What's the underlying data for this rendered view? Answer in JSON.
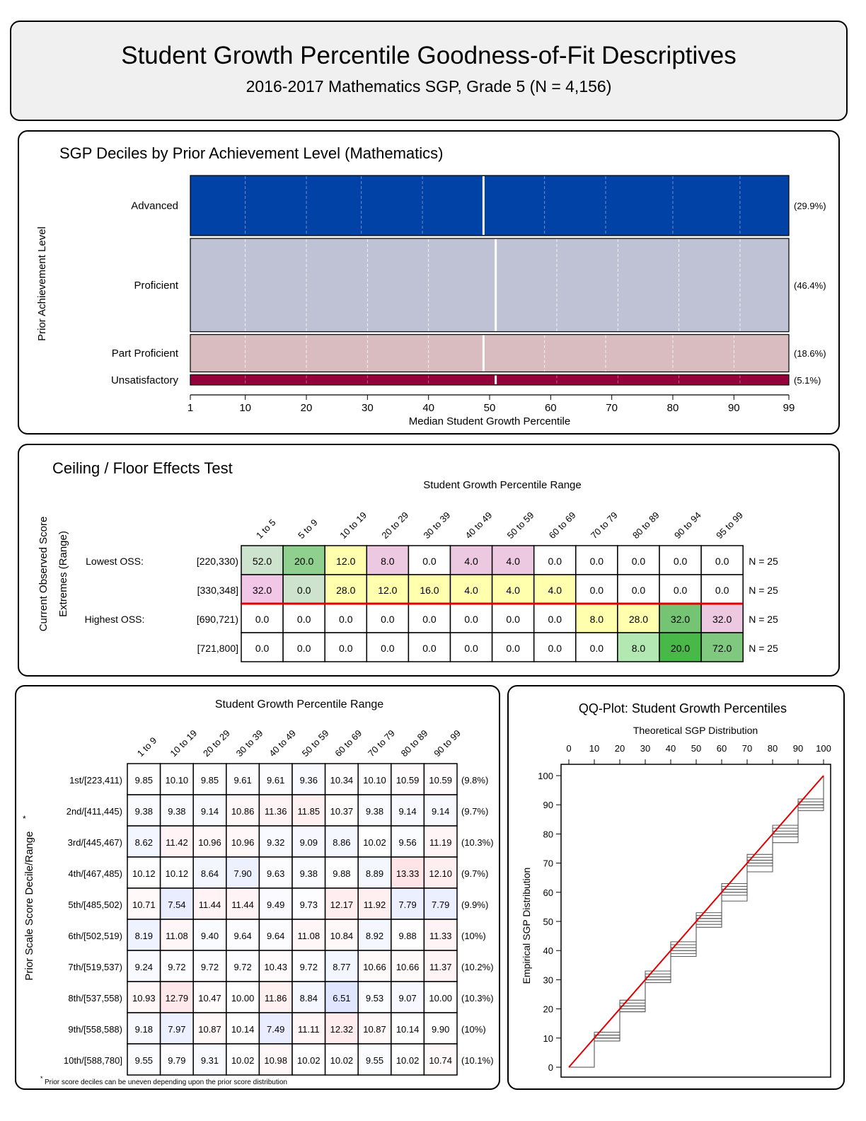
{
  "header": {
    "title": "Student Growth Percentile Goodness-of-Fit Descriptives",
    "subtitle": "2016-2017 Mathematics SGP, Grade 5 (N = 4,156)"
  },
  "chart_data": [
    {
      "type": "bar",
      "title": "SGP Deciles by Prior Achievement Level (Mathematics)",
      "xlabel": "Median Student Growth Percentile",
      "ylabel": "Prior Achievement Level",
      "xlim": [
        1,
        99
      ],
      "xticks": [
        1,
        10,
        20,
        30,
        40,
        50,
        60,
        70,
        80,
        90,
        99
      ],
      "categories": [
        "Advanced",
        "Proficient",
        "Part Proficient",
        "Unsatisfactory"
      ],
      "pct_labels": [
        "(29.9%)",
        "(46.4%)",
        "(18.6%)",
        "(5.1%)"
      ],
      "shares": [
        29.9,
        46.4,
        18.6,
        5.1
      ],
      "colors": [
        "#0142a7",
        "#bfc1d4",
        "#d8bcc0",
        "#95003a"
      ],
      "medians": [
        49,
        51,
        49,
        51
      ],
      "deciles": [
        [
          10,
          20,
          29,
          39,
          49,
          59,
          69,
          80,
          91
        ],
        [
          10,
          20,
          30,
          40,
          51,
          61,
          71,
          81,
          91
        ],
        [
          10,
          20,
          30,
          40,
          49,
          59,
          69,
          80,
          90
        ],
        [
          10,
          20,
          30,
          40,
          51,
          61,
          71,
          81,
          91
        ]
      ]
    },
    {
      "type": "table",
      "title": "Ceiling / Floor Effects Test",
      "col_header": "Student Growth Percentile Range",
      "row_header": [
        "Current Observed Score",
        "Extremes (Range)"
      ],
      "columns": [
        "1 to 5",
        "5 to 9",
        "10 to 19",
        "20 to 29",
        "30 to 39",
        "40 to 49",
        "50 to 59",
        "60 to 69",
        "70 to 79",
        "80 to 89",
        "90 to 94",
        "95 to 99"
      ],
      "rows": [
        {
          "group": "Lowest OSS:",
          "range": "[220,330)",
          "n": "N = 25",
          "values": [
            "52.0",
            "20.0",
            "12.0",
            "8.0",
            "0.0",
            "4.0",
            "4.0",
            "0.0",
            "0.0",
            "0.0",
            "0.0",
            "0.0"
          ],
          "colors": [
            "#cde3cd",
            "#8fd08f",
            "#ffffad",
            "#ecc9e1",
            "#ffffff",
            "#ecc9e1",
            "#ecc9e1",
            "#ffffff",
            "#ffffff",
            "#ffffff",
            "#ffffff",
            "#ffffff"
          ]
        },
        {
          "group": "",
          "range": "[330,348]",
          "n": "N = 25",
          "values": [
            "32.0",
            "0.0",
            "28.0",
            "12.0",
            "16.0",
            "4.0",
            "4.0",
            "4.0",
            "0.0",
            "0.0",
            "0.0",
            "0.0"
          ],
          "colors": [
            "#f1c6e6",
            "#cde3cd",
            "#ffffad",
            "#ffffad",
            "#ffffad",
            "#ffffad",
            "#ffffad",
            "#ffffad",
            "#ffffff",
            "#ffffff",
            "#ffffff",
            "#ffffff"
          ]
        },
        {
          "group": "Highest OSS:",
          "range": "[690,721)",
          "n": "N = 25",
          "values": [
            "0.0",
            "0.0",
            "0.0",
            "0.0",
            "0.0",
            "0.0",
            "0.0",
            "0.0",
            "8.0",
            "28.0",
            "32.0",
            "32.0"
          ],
          "colors": [
            "#ffffff",
            "#ffffff",
            "#ffffff",
            "#ffffff",
            "#ffffff",
            "#ffffff",
            "#ffffff",
            "#ffffff",
            "#ffffad",
            "#ffffad",
            "#74c474",
            "#ecc9e1"
          ]
        },
        {
          "group": "",
          "range": "[721,800]",
          "n": "N = 25",
          "values": [
            "0.0",
            "0.0",
            "0.0",
            "0.0",
            "0.0",
            "0.0",
            "0.0",
            "0.0",
            "0.0",
            "8.0",
            "20.0",
            "72.0"
          ],
          "colors": [
            "#ffffff",
            "#ffffff",
            "#ffffff",
            "#ffffff",
            "#ffffff",
            "#ffffff",
            "#ffffff",
            "#ffffff",
            "#ffffff",
            "#b3e8b3",
            "#48b848",
            "#80c880"
          ]
        }
      ]
    },
    {
      "type": "heatmap",
      "title": "Student Growth Percentile Range",
      "ylabel": "Prior Scale Score Decile/Range",
      "ylabel_mark": "*",
      "footnote_mark": "*",
      "footnote": "Prior score deciles can be uneven depending upon the prior score distribution",
      "columns": [
        "1 to 9",
        "10 to 19",
        "20 to 29",
        "30 to 39",
        "40 to 49",
        "50 to 59",
        "60 to 69",
        "70 to 79",
        "80 to 89",
        "90 to 99"
      ],
      "rows": [
        "1st/[223,411)",
        "2nd/[411,445)",
        "3rd/[445,467)",
        "4th/[467,485)",
        "5th/[485,502)",
        "6th/[502,519)",
        "7th/[519,537)",
        "8th/[537,558)",
        "9th/[558,588)",
        "10th/[588,780]"
      ],
      "row_pct": [
        "(9.8%)",
        "(9.7%)",
        "(10.3%)",
        "(9.7%)",
        "(9.9%)",
        "(10%)",
        "(10.2%)",
        "(10.3%)",
        "(10%)",
        "(10.1%)"
      ],
      "values": [
        [
          "9.85",
          "10.10",
          "9.85",
          "9.61",
          "9.61",
          "9.36",
          "10.34",
          "10.10",
          "10.59",
          "10.59"
        ],
        [
          "9.38",
          "9.38",
          "9.14",
          "10.86",
          "11.36",
          "11.85",
          "10.37",
          "9.38",
          "9.14",
          "9.14"
        ],
        [
          "8.62",
          "11.42",
          "10.96",
          "10.96",
          "9.32",
          "9.09",
          "8.86",
          "10.02",
          "9.56",
          "11.19"
        ],
        [
          "10.12",
          "10.12",
          "8.64",
          "7.90",
          "9.63",
          "9.38",
          "9.88",
          "8.89",
          "13.33",
          "12.10"
        ],
        [
          "10.71",
          "7.54",
          "11.44",
          "11.44",
          "9.49",
          "9.73",
          "12.17",
          "11.92",
          "7.79",
          "7.79"
        ],
        [
          "8.19",
          "11.08",
          "9.40",
          "9.64",
          "9.64",
          "11.08",
          "10.84",
          "8.92",
          "9.88",
          "11.33"
        ],
        [
          "9.24",
          "9.72",
          "9.72",
          "9.72",
          "10.43",
          "9.72",
          "8.77",
          "10.66",
          "10.66",
          "11.37"
        ],
        [
          "10.93",
          "12.79",
          "10.47",
          "10.00",
          "11.86",
          "8.84",
          "6.51",
          "9.53",
          "9.07",
          "10.00"
        ],
        [
          "9.18",
          "7.97",
          "10.87",
          "10.14",
          "7.49",
          "11.11",
          "12.32",
          "10.87",
          "10.14",
          "9.90"
        ],
        [
          "9.55",
          "9.79",
          "9.31",
          "10.02",
          "10.98",
          "10.02",
          "10.02",
          "9.55",
          "10.02",
          "10.74"
        ]
      ]
    },
    {
      "type": "line",
      "title": "QQ-Plot: Student Growth Percentiles",
      "xlabel": "Theoretical SGP Distribution",
      "ylabel": "Empirical SGP Distribution",
      "xlim": [
        0,
        100
      ],
      "ylim": [
        0,
        100
      ],
      "xticks": [
        0,
        10,
        20,
        30,
        40,
        50,
        60,
        70,
        80,
        90,
        100
      ],
      "yticks": [
        0,
        10,
        20,
        30,
        40,
        50,
        60,
        70,
        80,
        90,
        100
      ],
      "reference_line": {
        "x": [
          0,
          100
        ],
        "y": [
          0,
          100
        ],
        "color": "#e00000"
      },
      "series": [
        {
          "x": [
            0,
            10,
            20,
            30,
            40,
            50,
            60,
            70,
            80,
            90,
            100
          ],
          "y": [
            0,
            12,
            23,
            33,
            43,
            53,
            63,
            73,
            83,
            92,
            100
          ]
        },
        {
          "x": [
            0,
            10,
            20,
            30,
            40,
            50,
            60,
            70,
            80,
            90,
            100
          ],
          "y": [
            0,
            9,
            19,
            29,
            38,
            48,
            57,
            67,
            77,
            88,
            100
          ]
        },
        {
          "x": [
            0,
            10,
            20,
            30,
            40,
            50,
            60,
            70,
            80,
            90,
            100
          ],
          "y": [
            0,
            11,
            21,
            31,
            41,
            51,
            60,
            70,
            80,
            90,
            100
          ]
        },
        {
          "x": [
            0,
            10,
            20,
            30,
            40,
            50,
            60,
            70,
            80,
            90,
            100
          ],
          "y": [
            0,
            10,
            19,
            30,
            39,
            49,
            59,
            69,
            79,
            89,
            100
          ]
        },
        {
          "x": [
            0,
            10,
            20,
            30,
            40,
            50,
            60,
            70,
            80,
            90,
            100
          ],
          "y": [
            0,
            11,
            22,
            32,
            42,
            52,
            62,
            72,
            82,
            91,
            100
          ]
        },
        {
          "x": [
            0,
            10,
            20,
            30,
            40,
            50,
            60,
            70,
            80,
            90,
            100
          ],
          "y": [
            0,
            10,
            20,
            30,
            40,
            50,
            60,
            70,
            80,
            90,
            100
          ]
        },
        {
          "x": [
            0,
            10,
            20,
            30,
            40,
            50,
            60,
            70,
            80,
            90,
            100
          ],
          "y": [
            0,
            9,
            20,
            31,
            41,
            50,
            61,
            71,
            81,
            91,
            100
          ]
        },
        {
          "x": [
            0,
            10,
            20,
            30,
            40,
            50,
            60,
            70,
            80,
            90,
            100
          ],
          "y": [
            0,
            10,
            21,
            30,
            40,
            51,
            61,
            71,
            80,
            90,
            100
          ]
        }
      ]
    }
  ]
}
